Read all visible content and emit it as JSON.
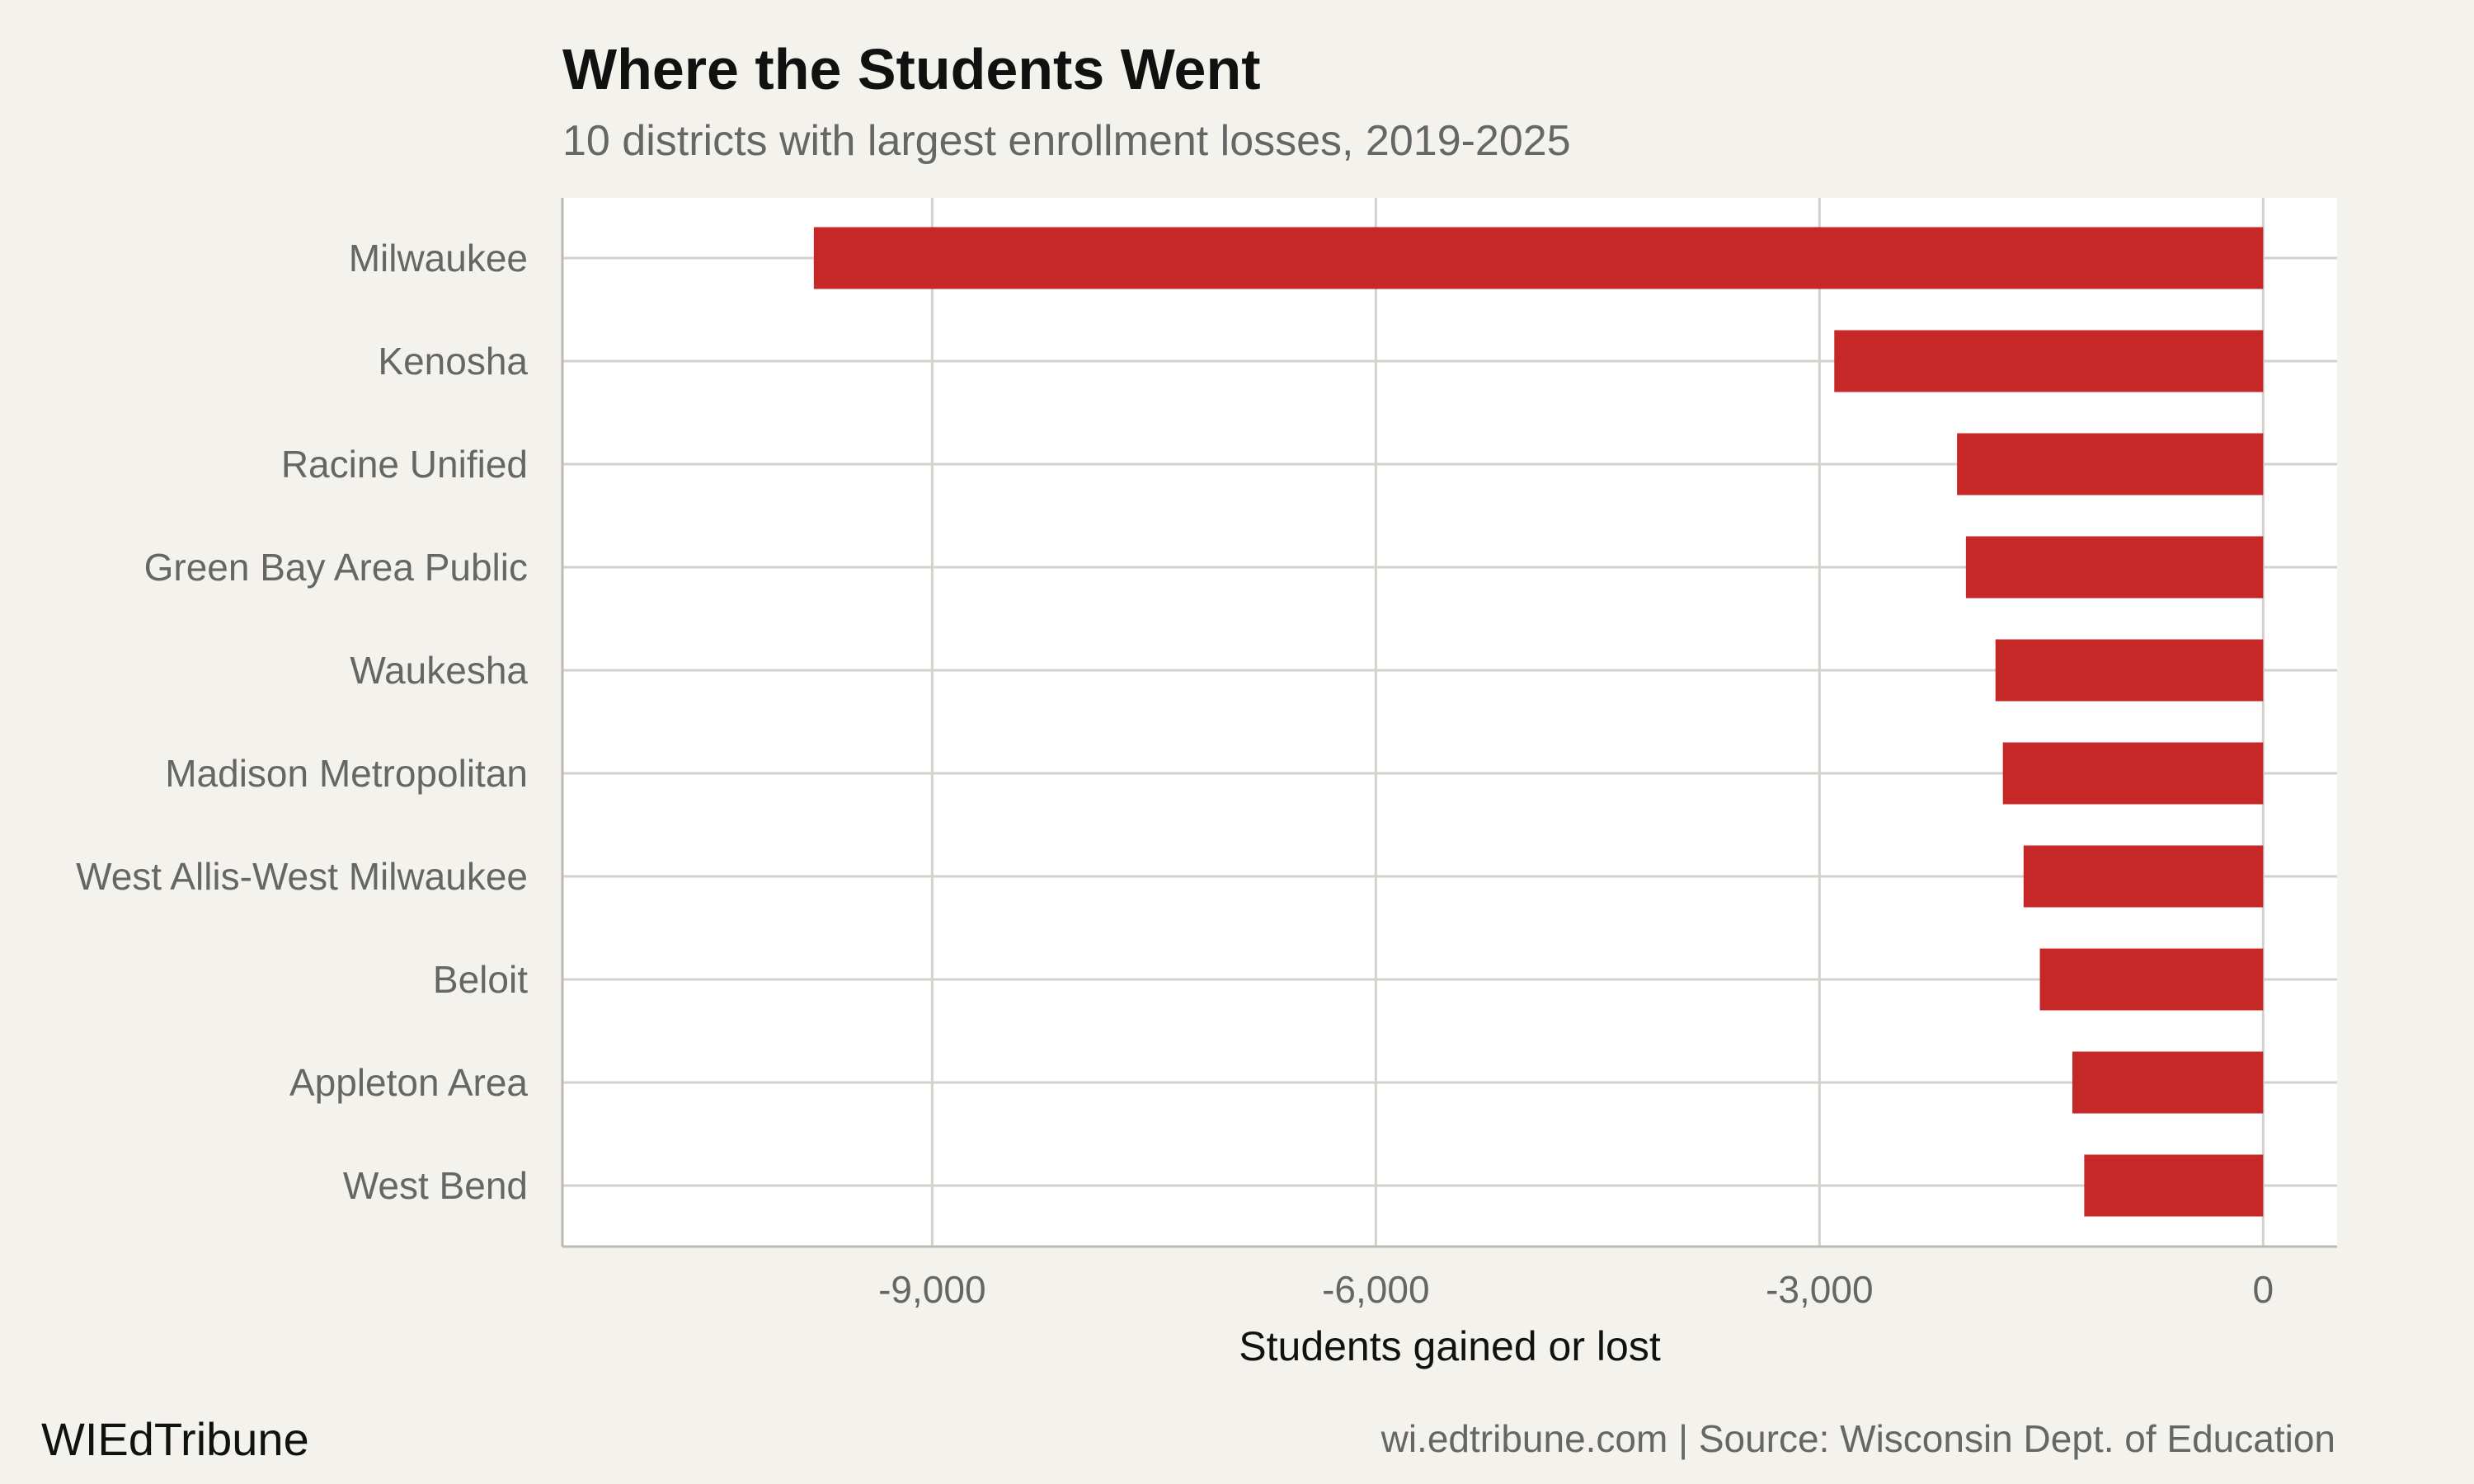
{
  "chart_data": {
    "type": "bar",
    "orientation": "horizontal",
    "title": "Where the Students Went",
    "subtitle": "10 districts with largest enrollment losses, 2019-2025",
    "xlabel": "Students gained or lost",
    "ylabel": "",
    "xlim": [
      -11500,
      500
    ],
    "xticks": [
      -9000,
      -6000,
      -3000,
      0
    ],
    "xtick_labels": [
      "-9,000",
      "-6,000",
      "-3,000",
      "0"
    ],
    "grid": true,
    "bar_color": "#c62828",
    "categories": [
      "Milwaukee",
      "Kenosha",
      "Racine Unified",
      "Green Bay Area Public",
      "Waukesha",
      "Madison Metropolitan",
      "West Allis-West Milwaukee",
      "Beloit",
      "Appleton Area",
      "West Bend"
    ],
    "values": [
      -9800,
      -2900,
      -2070,
      -2010,
      -1810,
      -1760,
      -1620,
      -1510,
      -1290,
      -1210
    ]
  },
  "footer": {
    "brand": "WIEdTribune",
    "source": "wi.edtribune.com | Source: Wisconsin Dept. of Education"
  }
}
